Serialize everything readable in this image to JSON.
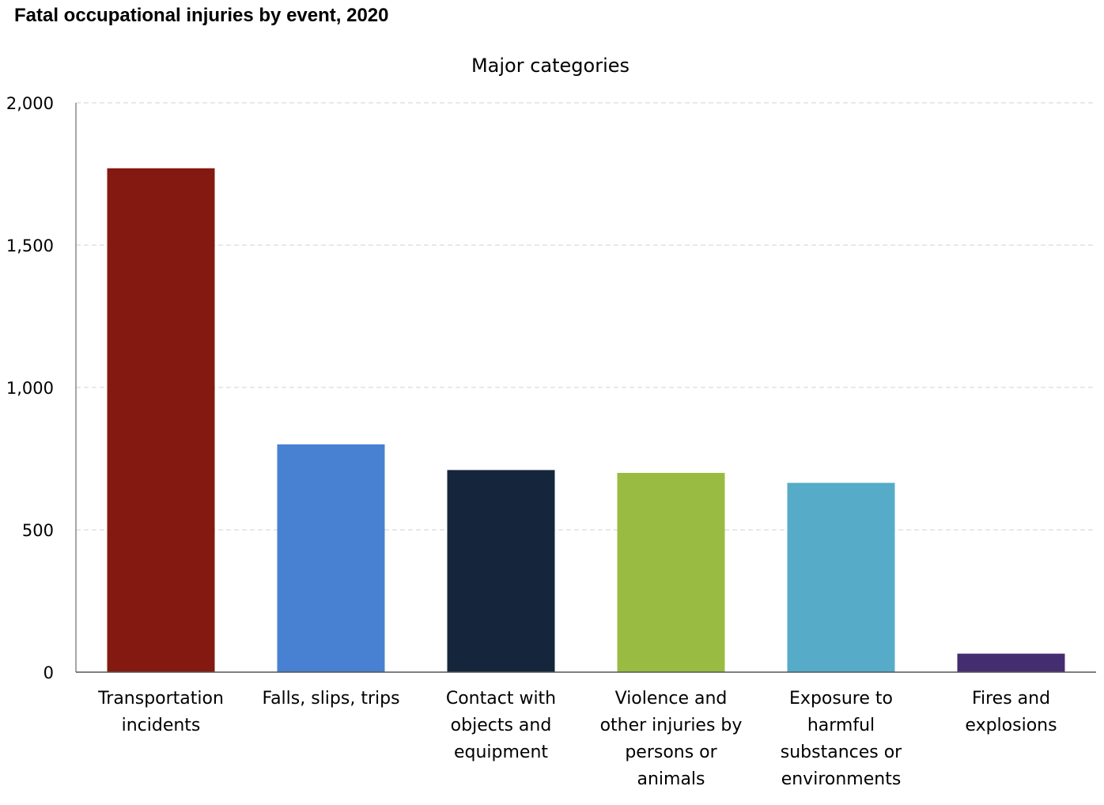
{
  "page": {
    "title": "Fatal occupational injuries by event, 2020"
  },
  "chart_data": {
    "type": "bar",
    "title": "Fatal occupational injuries by event, 2020",
    "subtitle": "Major categories",
    "xlabel": "",
    "ylabel": "",
    "ylim": [
      0,
      2000
    ],
    "yticks": [
      0,
      500,
      1000,
      1500,
      2000
    ],
    "ytick_labels": [
      "0",
      "500",
      "1,000",
      "1,500",
      "2,000"
    ],
    "grid": true,
    "legend": "none",
    "categories": [
      [
        "Transportation",
        "incidents"
      ],
      [
        "Falls, slips, trips"
      ],
      [
        "Contact with",
        "objects and",
        "equipment"
      ],
      [
        "Violence and",
        "other injuries by",
        "persons or",
        "animals"
      ],
      [
        "Exposure to",
        "harmful",
        "substances or",
        "environments"
      ],
      [
        "Fires and",
        "explosions"
      ]
    ],
    "values": [
      1770,
      800,
      710,
      700,
      665,
      65
    ],
    "colors": [
      "#831910",
      "#4880D2",
      "#15253B",
      "#9ABB42",
      "#56ACC8",
      "#452E6F"
    ]
  }
}
